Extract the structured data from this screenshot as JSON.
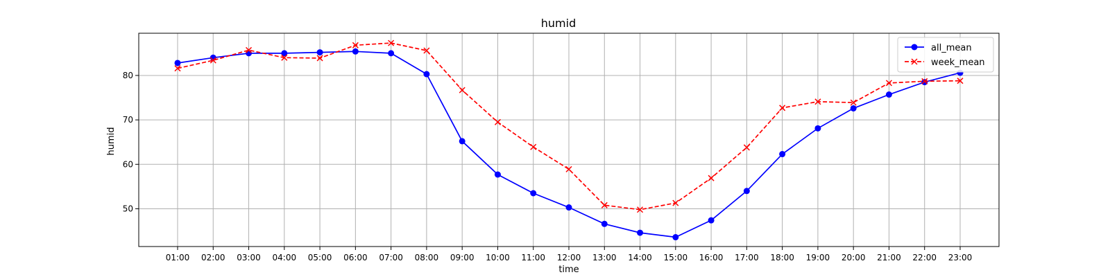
{
  "chart_data": {
    "type": "line",
    "title": "humid",
    "xlabel": "time",
    "ylabel": "humid",
    "categories": [
      "01:00",
      "02:00",
      "03:00",
      "04:00",
      "05:00",
      "06:00",
      "07:00",
      "08:00",
      "09:00",
      "10:00",
      "11:00",
      "12:00",
      "13:00",
      "14:00",
      "15:00",
      "16:00",
      "17:00",
      "18:00",
      "19:00",
      "20:00",
      "21:00",
      "22:00",
      "23:00"
    ],
    "ylim": [
      41.5,
      89.5
    ],
    "yticks": [
      50,
      60,
      70,
      80
    ],
    "grid": true,
    "legend_position": "top-right",
    "series": [
      {
        "name": "all_mean",
        "color": "#0000ff",
        "line_style": "solid",
        "marker": "circle",
        "values": [
          82.8,
          84.0,
          85.0,
          85.0,
          85.2,
          85.4,
          85.0,
          80.3,
          65.2,
          57.7,
          53.5,
          50.3,
          46.6,
          44.6,
          43.6,
          47.4,
          54.0,
          62.3,
          68.1,
          72.6,
          75.7,
          78.5,
          80.6
        ]
      },
      {
        "name": "week_mean",
        "color": "#ff0000",
        "line_style": "dashed",
        "marker": "x",
        "values": [
          81.6,
          83.4,
          85.7,
          84.0,
          83.9,
          86.8,
          87.3,
          85.6,
          76.7,
          69.5,
          63.9,
          58.9,
          50.8,
          49.8,
          51.3,
          56.9,
          63.8,
          72.7,
          74.1,
          73.9,
          78.3,
          78.7,
          78.8
        ]
      }
    ]
  }
}
